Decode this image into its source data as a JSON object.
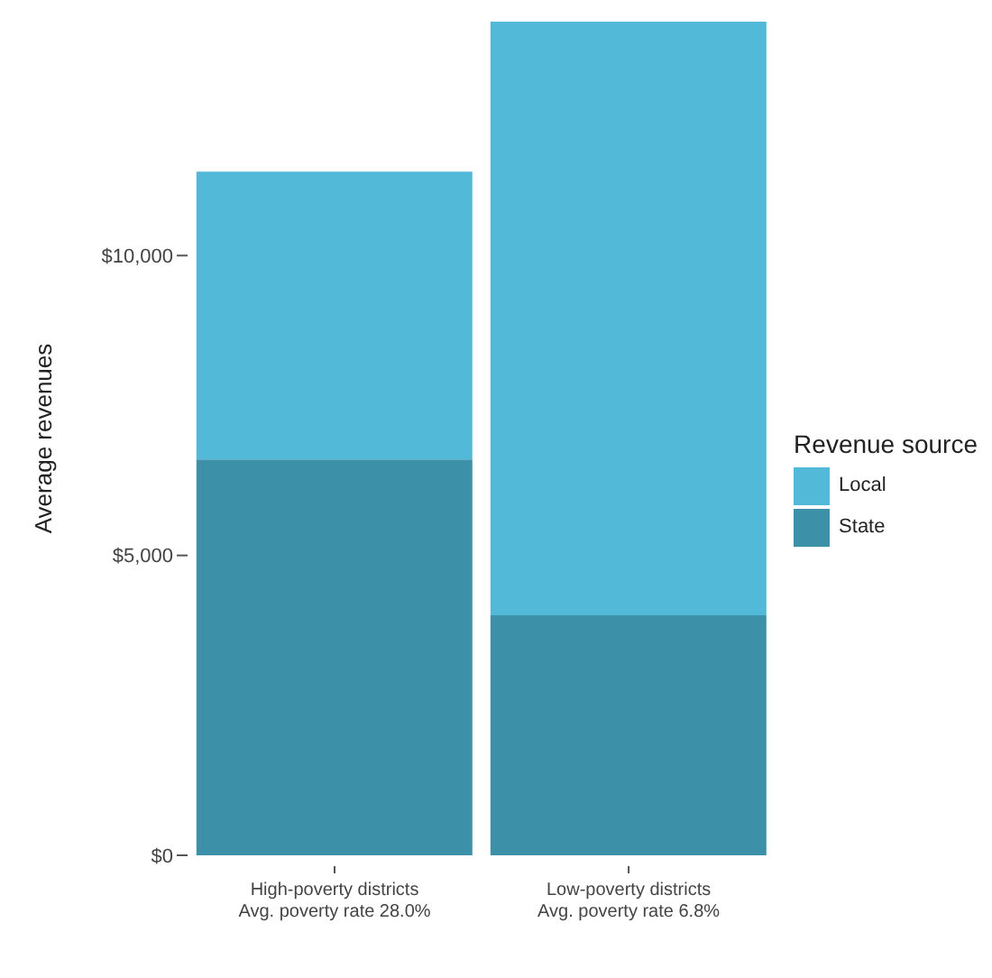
{
  "chart_data": {
    "type": "bar",
    "stacked": true,
    "ylabel": "Average revenues",
    "legend_title": "Revenue source",
    "legend": "right",
    "grid": false,
    "categories": [
      "High-poverty districts\nAvg. poverty rate 28.0%",
      "Low-poverty districts\nAvg. poverty rate 6.8%"
    ],
    "series": [
      {
        "name": "State",
        "color": "#3c91a9",
        "values": [
          6600,
          4000
        ]
      },
      {
        "name": "Local",
        "color": "#53b9d8",
        "values": [
          4800,
          9900
        ]
      }
    ],
    "ylim": [
      0,
      13900
    ],
    "yticks": [
      {
        "value": 0,
        "label": "$0"
      },
      {
        "value": 5000,
        "label": "$5,000"
      },
      {
        "value": 10000,
        "label": "$10,000"
      }
    ]
  }
}
